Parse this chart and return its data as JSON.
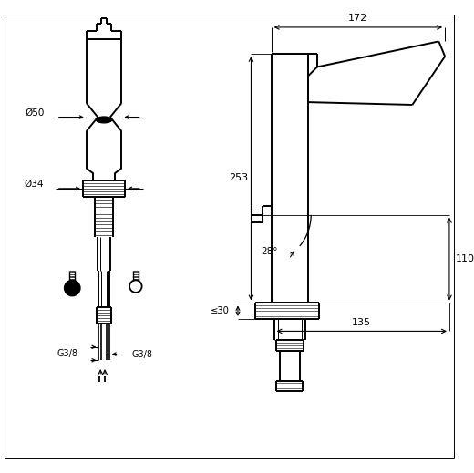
{
  "bg_color": "#ffffff",
  "line_color": "#000000",
  "fig_width": 5.2,
  "fig_height": 5.19,
  "dpi": 100,
  "dim_172": "172",
  "dim_253": "253",
  "dim_110": "110",
  "dim_28deg": "28°",
  "dim_135": "135",
  "dim_le30": "≤30",
  "dim_o50": "Ø50",
  "dim_o34": "Ø34",
  "dim_g38_left": "G3/8",
  "dim_g38_right": "G3/8"
}
